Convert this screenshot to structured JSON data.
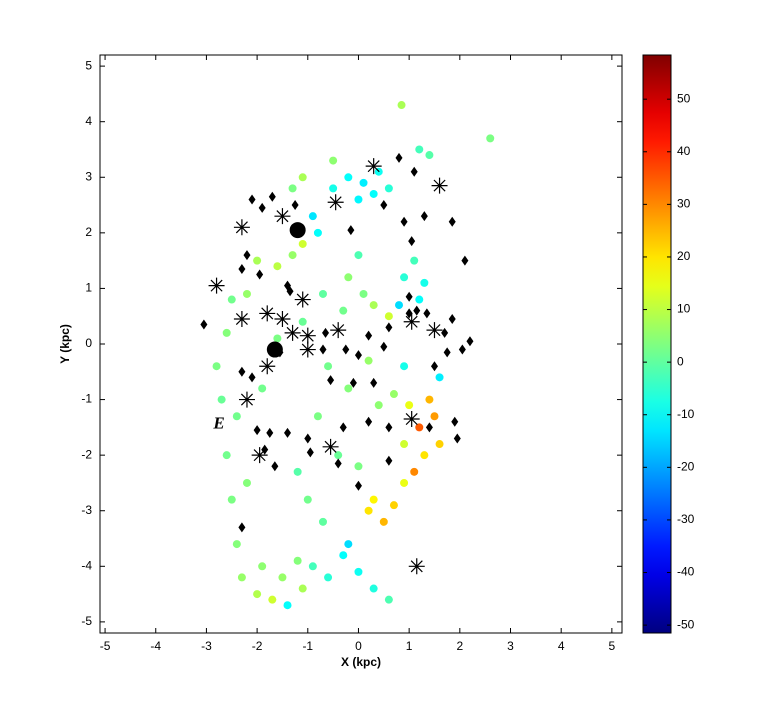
{
  "chart_data": {
    "type": "scatter",
    "xlabel": "X (kpc)",
    "ylabel": "Y (kpc)",
    "xlim": [
      -5.1,
      5.2
    ],
    "ylim": [
      -5.2,
      5.2
    ],
    "xticks": [
      -5,
      -4,
      -3,
      -2,
      -1,
      0,
      1,
      2,
      3,
      4,
      5
    ],
    "yticks": [
      -5,
      -4,
      -3,
      -2,
      -1,
      0,
      1,
      2,
      3,
      4,
      5
    ],
    "colorbar": {
      "colormap": "jet",
      "clim": [
        -51.5,
        58.4
      ],
      "ticks": [
        -50,
        -40,
        -30,
        -20,
        -10,
        0,
        10,
        20,
        30,
        40,
        50
      ]
    },
    "annotations": [
      {
        "text": "E",
        "x": -2.75,
        "y": -1.45
      }
    ],
    "series": [
      {
        "marker": "dot",
        "x": [
          -0.2,
          0.1,
          0.4,
          -0.5,
          0.0,
          0.3,
          -0.9,
          -0.8,
          0.6,
          1.2,
          1.4,
          0.85,
          2.6,
          -1.1,
          -0.5,
          -2.0,
          -1.6,
          -1.3,
          -1.1,
          -2.5,
          -2.6,
          -2.8,
          -2.7,
          -2.6,
          -2.5,
          -2.4,
          -2.3,
          -2.0,
          -1.7,
          -1.9,
          -1.5,
          -1.2,
          -1.1,
          -0.9,
          -0.6,
          -0.3,
          0.0,
          0.3,
          0.6,
          -1.4,
          -0.2,
          0.2,
          0.5,
          0.3,
          0.7,
          0.9,
          1.1,
          1.3,
          1.2,
          1.5,
          1.4,
          1.0,
          0.9,
          1.6,
          0.7,
          0.9,
          1.2,
          0.9,
          1.1,
          0.8,
          1.3,
          0.6,
          0.3,
          0.1,
          -0.3,
          -0.7,
          -1.1,
          -0.6,
          -0.2,
          0.2,
          0.4,
          -0.8,
          -0.4,
          -1.2,
          -1.0,
          -0.7,
          0.0,
          -2.2,
          -1.6,
          -1.9,
          1.6,
          -1.3,
          -0.2,
          0.0,
          -2.2,
          -2.4
        ],
        "y": [
          3.0,
          2.9,
          3.1,
          2.8,
          2.6,
          2.7,
          2.3,
          2.0,
          2.8,
          3.5,
          3.4,
          4.3,
          3.7,
          3.0,
          3.3,
          1.5,
          1.4,
          1.6,
          1.8,
          0.8,
          0.2,
          -0.4,
          -1.0,
          -2.0,
          -2.8,
          -3.6,
          -4.2,
          -4.5,
          -4.6,
          -4.0,
          -4.2,
          -3.9,
          -4.4,
          -4.0,
          -4.2,
          -3.8,
          -4.1,
          -4.4,
          -4.6,
          -4.7,
          -3.6,
          -3.0,
          -3.2,
          -2.8,
          -2.9,
          -2.5,
          -2.3,
          -2.0,
          -1.5,
          -1.3,
          -1.0,
          -1.1,
          -1.8,
          -1.8,
          -0.9,
          -0.4,
          0.8,
          1.2,
          1.5,
          0.7,
          1.1,
          0.5,
          0.7,
          0.9,
          0.6,
          0.9,
          0.4,
          -0.4,
          -0.8,
          -0.3,
          -1.1,
          -1.3,
          -2.0,
          -2.3,
          -2.8,
          -3.2,
          -2.2,
          0.9,
          0.1,
          -0.8,
          -0.6,
          2.8,
          1.2,
          1.6,
          -2.5,
          -1.3
        ],
        "c": [
          -10,
          -12,
          -9,
          -8,
          -11,
          -10,
          -13,
          -10,
          -6,
          -3,
          -1,
          8,
          3,
          8,
          5,
          8,
          10,
          6,
          12,
          2,
          4,
          3,
          1,
          2,
          3,
          4,
          6,
          9,
          12,
          5,
          6,
          4,
          8,
          -3,
          -6,
          -10,
          -9,
          -7,
          -2,
          -10,
          -14,
          20,
          25,
          18,
          22,
          15,
          30,
          20,
          35,
          28,
          25,
          15,
          12,
          22,
          6,
          -8,
          -10,
          -6,
          -3,
          -14,
          -8,
          12,
          8,
          3,
          2,
          0,
          1,
          2,
          4,
          6,
          5,
          3,
          1,
          -1,
          2,
          0,
          3,
          6,
          3,
          2,
          -12,
          3,
          5,
          -2,
          4,
          2
        ]
      },
      {
        "marker": "diamond",
        "color": "#000000",
        "x": [
          0.8,
          1.1,
          -2.1,
          -1.9,
          -1.7,
          -1.25,
          0.5,
          0.9,
          1.3,
          1.85,
          -0.15,
          1.05,
          2.1,
          -2.2,
          -2.3,
          -1.95,
          -1.4,
          -1.35,
          1.0,
          -3.05,
          1.0,
          1.15,
          0.6,
          1.35,
          1.85,
          1.7,
          2.2,
          0.2,
          -0.65,
          -0.7,
          -0.25,
          0.5,
          0.0,
          1.75,
          2.05,
          1.5,
          -2.3,
          -2.1,
          -1.55,
          -0.55,
          0.3,
          -0.1,
          -2.0,
          -1.75,
          -1.4,
          -1.85,
          -1.0,
          -0.95,
          -0.3,
          0.2,
          0.6,
          1.4,
          1.9,
          1.95,
          -0.4,
          0.6,
          -1.65,
          0.0,
          -2.3
        ],
        "y": [
          3.35,
          3.1,
          2.6,
          2.45,
          2.65,
          2.5,
          2.5,
          2.2,
          2.3,
          2.2,
          2.05,
          1.85,
          1.5,
          1.6,
          1.35,
          1.25,
          1.05,
          0.95,
          0.85,
          0.35,
          0.55,
          0.6,
          0.3,
          0.55,
          0.45,
          0.2,
          0.05,
          0.15,
          0.2,
          -0.1,
          -0.1,
          -0.05,
          -0.2,
          -0.15,
          -0.1,
          -0.4,
          -0.5,
          -0.6,
          -0.15,
          -0.65,
          -0.7,
          -0.7,
          -1.55,
          -1.6,
          -1.6,
          -1.9,
          -1.7,
          -1.95,
          -1.5,
          -1.4,
          -1.5,
          -1.5,
          -1.4,
          -1.7,
          -2.15,
          -2.1,
          -2.2,
          -2.55,
          -3.3
        ]
      },
      {
        "marker": "asterisk",
        "color": "#000000",
        "x": [
          0.3,
          1.6,
          -0.45,
          -1.5,
          -2.3,
          -2.8,
          -1.1,
          1.05,
          -1.8,
          -2.3,
          -1.5,
          -1.3,
          -1.0,
          -0.4,
          1.5,
          -1.0,
          -1.8,
          -2.2,
          1.05,
          -0.55,
          -1.95,
          1.15
        ],
        "y": [
          3.2,
          2.85,
          2.55,
          2.3,
          2.1,
          1.05,
          0.8,
          0.4,
          0.55,
          0.45,
          0.45,
          0.2,
          0.15,
          0.25,
          0.25,
          -0.1,
          -0.4,
          -1.0,
          -1.35,
          -1.85,
          -2.0,
          -4.0
        ]
      },
      {
        "marker": "disc",
        "color": "#000000",
        "x": [
          -1.2,
          -1.65
        ],
        "y": [
          2.05,
          -0.1
        ]
      }
    ]
  }
}
